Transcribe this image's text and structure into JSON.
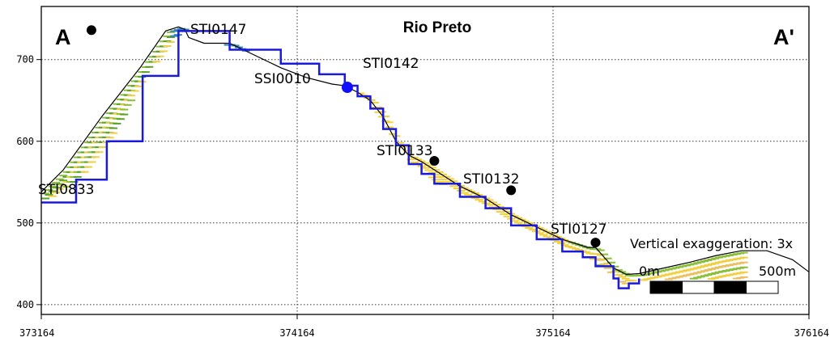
{
  "chart_data": {
    "type": "line",
    "title": "Rio Preto",
    "section_start_label": "A",
    "section_end_label": "A'",
    "xlabel": "",
    "ylabel": "",
    "xlim": [
      373164,
      376164
    ],
    "ylim": [
      388,
      765
    ],
    "x_ticks": [
      373164,
      374164,
      375164,
      376164
    ],
    "x_tick_labels": [
      "373164",
      "374164",
      "375164",
      "376164"
    ],
    "y_ticks": [
      400,
      500,
      600,
      700
    ],
    "y_tick_labels": [
      "400",
      "500",
      "600",
      "700"
    ],
    "grid": true,
    "terrain_profile": {
      "x": [
        373164,
        373250,
        373400,
        373550,
        373650,
        373700,
        373725,
        373740,
        373800,
        373900,
        374000,
        374100,
        374200,
        374300,
        374350,
        374400,
        374450,
        374500,
        374550,
        374600,
        374650,
        374700,
        374800,
        374900,
        375000,
        375100,
        375200,
        375300,
        375330,
        375400,
        375450,
        375500,
        375600,
        375700,
        375800,
        375900,
        376000,
        376100,
        376164
      ],
      "y": [
        538,
        565,
        630,
        690,
        735,
        740,
        737,
        727,
        720,
        720,
        705,
        690,
        678,
        670,
        668,
        660,
        650,
        630,
        600,
        583,
        575,
        565,
        545,
        530,
        510,
        495,
        480,
        470,
        470,
        445,
        437,
        438,
        445,
        452,
        460,
        466,
        466,
        455,
        440
      ]
    },
    "water_table": {
      "x": [
        373164,
        373300,
        373420,
        373560,
        373700,
        373900,
        374100,
        374250,
        374350,
        374400,
        374450,
        374500,
        374550,
        374600,
        374650,
        374700,
        374800,
        374900,
        375000,
        375100,
        375200,
        375280,
        375330,
        375400,
        375420,
        375460,
        375500
      ],
      "y": [
        525,
        553,
        600,
        680,
        735,
        712,
        695,
        682,
        668,
        655,
        640,
        615,
        595,
        572,
        560,
        548,
        532,
        518,
        497,
        480,
        465,
        458,
        447,
        432,
        420,
        426,
        432
      ]
    },
    "wells": [
      {
        "name": "STI0147",
        "x": 373360,
        "y": 736,
        "marker": "black"
      },
      {
        "name": "STI0142",
        "x": 374360,
        "y": 666,
        "marker": "blue"
      },
      {
        "name": "STI0133",
        "x": 374700,
        "y": 576,
        "marker": "black"
      },
      {
        "name": "STI0132",
        "x": 375000,
        "y": 540,
        "marker": "black"
      },
      {
        "name": "STI0127",
        "x": 375330,
        "y": 476,
        "marker": "black"
      },
      {
        "name": "SSI0010",
        "x": null,
        "y": null,
        "marker": "none"
      },
      {
        "name": "STI0833",
        "x": null,
        "y": null,
        "marker": "none"
      }
    ],
    "annotations": {
      "vertical_exaggeration": "Vertical exaggeration: 3x",
      "scale_start": "0m",
      "scale_end": "500m"
    },
    "colors": {
      "terrain": "#000000",
      "water_table": "#1a1adc",
      "well_blue": "#1010ff",
      "log_palette": [
        "#f0d040",
        "#e8c060",
        "#8bbf3a",
        "#5aa02c",
        "#2f7fb8",
        "#f08a20",
        "#e8401a"
      ]
    }
  }
}
